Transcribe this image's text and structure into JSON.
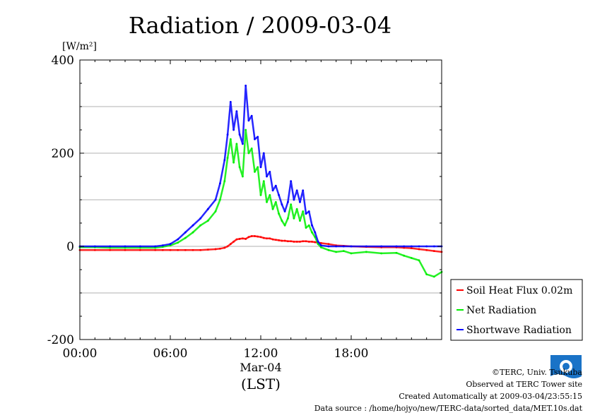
{
  "chart_data": {
    "type": "line",
    "title": "Radiation / 2009-03-04",
    "ylabel_unit": "[W/m²]",
    "ylim": [
      -200,
      400
    ],
    "yticks": [
      -200,
      0,
      200,
      400
    ],
    "xlim_hours": [
      0,
      24
    ],
    "xtick_hours": [
      0,
      6,
      12,
      18
    ],
    "xtick_labels": [
      "00:00",
      "06:00",
      "12:00",
      "18:00"
    ],
    "xdate_label": "Mar-04",
    "xunit_label": "(LST)",
    "grid": "horizontal",
    "legend_position": "bottom-right",
    "x": [
      0,
      1,
      2,
      3,
      4,
      5,
      5.5,
      6,
      6.5,
      7,
      7.5,
      8,
      8.5,
      9,
      9.3,
      9.6,
      9.8,
      10,
      10.2,
      10.4,
      10.6,
      10.8,
      11,
      11.2,
      11.4,
      11.6,
      11.8,
      12,
      12.2,
      12.4,
      12.6,
      12.8,
      13,
      13.2,
      13.4,
      13.6,
      13.8,
      14,
      14.2,
      14.4,
      14.6,
      14.8,
      15,
      15.2,
      15.4,
      15.6,
      15.8,
      16,
      16.5,
      17,
      17.5,
      18,
      19,
      20,
      21,
      21.5,
      22,
      22.5,
      23,
      23.5,
      24
    ],
    "series": [
      {
        "name": "Soil Heat Flux 0.02m",
        "color": "#ff0000",
        "values": [
          -8,
          -8,
          -8,
          -8,
          -8,
          -8,
          -8,
          -8,
          -8,
          -8,
          -8,
          -8,
          -7,
          -6,
          -5,
          -3,
          0,
          5,
          10,
          15,
          16,
          17,
          16,
          20,
          22,
          22,
          21,
          20,
          18,
          17,
          17,
          15,
          14,
          13,
          12,
          12,
          11,
          11,
          10,
          10,
          10,
          11,
          11,
          10,
          10,
          9,
          8,
          7,
          5,
          2,
          1,
          0,
          -1,
          -2,
          -2,
          -3,
          -4,
          -6,
          -8,
          -10,
          -12
        ]
      },
      {
        "name": "Net Radiation",
        "color": "#00ee00",
        "values": [
          -2,
          -2,
          -3,
          -3,
          -3,
          -3,
          -1,
          2,
          8,
          18,
          30,
          45,
          55,
          75,
          100,
          140,
          190,
          230,
          180,
          220,
          170,
          150,
          250,
          200,
          210,
          160,
          170,
          110,
          140,
          95,
          110,
          80,
          95,
          70,
          55,
          45,
          60,
          90,
          60,
          80,
          55,
          75,
          40,
          45,
          30,
          20,
          5,
          -2,
          -8,
          -12,
          -10,
          -15,
          -12,
          -15,
          -14,
          -20,
          -25,
          -30,
          -60,
          -65,
          -55
        ]
      },
      {
        "name": "Shortwave Radiation",
        "color": "#0000ff",
        "values": [
          0,
          0,
          0,
          0,
          0,
          0,
          2,
          5,
          15,
          30,
          45,
          60,
          80,
          100,
          135,
          185,
          240,
          310,
          250,
          290,
          240,
          220,
          345,
          270,
          280,
          230,
          235,
          170,
          200,
          150,
          160,
          120,
          130,
          110,
          90,
          75,
          95,
          140,
          100,
          120,
          95,
          120,
          70,
          75,
          45,
          30,
          10,
          2,
          0,
          0,
          0,
          0,
          0,
          0,
          0,
          0,
          0,
          0,
          0,
          0,
          0
        ]
      }
    ]
  },
  "footer": {
    "copyright": "©TERC, Univ. Tsukuba",
    "observed": "Observed at TERC Tower site",
    "created": "Created Automatically at 2009-03-04/23:55:15",
    "source": "Data source : /home/hojyo/new/TERC-data/sorted_data/MET.10s.dat"
  }
}
